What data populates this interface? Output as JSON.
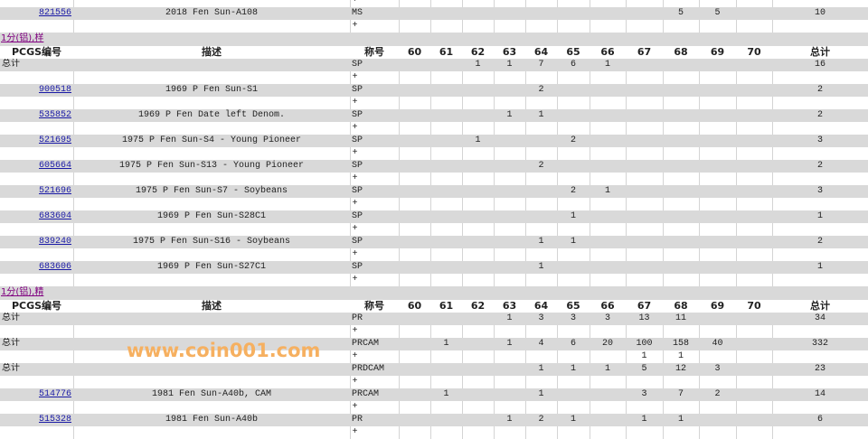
{
  "columns": [
    "PCGS编号",
    "描述",
    "称号",
    "60",
    "61",
    "62",
    "63",
    "64",
    "65",
    "66",
    "67",
    "68",
    "69",
    "70",
    "总计"
  ],
  "plus": "+",
  "total_label": "总计",
  "watermark": "www.coin001.com",
  "leading_rows": [
    {
      "type": "plus"
    },
    {
      "type": "item",
      "pcgs": "821556",
      "desc": "2018 Fen Sun-A108",
      "grade": "MS",
      "counts": {
        "68": "5",
        "69": "5"
      },
      "total": "10"
    },
    {
      "type": "plus"
    }
  ],
  "sections": [
    {
      "title": "1分(铝),样",
      "rows": [
        {
          "type": "total",
          "grade": "SP",
          "counts": {
            "62": "1",
            "63": "1",
            "64": "7",
            "65": "6",
            "66": "1"
          },
          "total": "16"
        },
        {
          "type": "plus"
        },
        {
          "type": "item",
          "pcgs": "900518",
          "desc": "1969 P Fen Sun-S1",
          "grade": "SP",
          "counts": {
            "64": "2"
          },
          "total": "2"
        },
        {
          "type": "plus"
        },
        {
          "type": "item",
          "pcgs": "535852",
          "desc": "1969 P Fen Date left Denom.",
          "grade": "SP",
          "counts": {
            "63": "1",
            "64": "1"
          },
          "total": "2"
        },
        {
          "type": "plus"
        },
        {
          "type": "item",
          "pcgs": "521695",
          "desc": "1975 P Fen Sun-S4 - Young Pioneer",
          "grade": "SP",
          "counts": {
            "62": "1",
            "65": "2"
          },
          "total": "3"
        },
        {
          "type": "plus"
        },
        {
          "type": "item",
          "pcgs": "605664",
          "desc": "1975 P Fen Sun-S13 - Young Pioneer",
          "grade": "SP",
          "counts": {
            "64": "2"
          },
          "total": "2"
        },
        {
          "type": "plus"
        },
        {
          "type": "item",
          "pcgs": "521696",
          "desc": "1975 P Fen Sun-S7 - Soybeans",
          "grade": "SP",
          "counts": {
            "65": "2",
            "66": "1"
          },
          "total": "3"
        },
        {
          "type": "plus"
        },
        {
          "type": "item",
          "pcgs": "683604",
          "desc": "1969 P Fen Sun-S28C1",
          "grade": "SP",
          "counts": {
            "65": "1"
          },
          "total": "1"
        },
        {
          "type": "plus"
        },
        {
          "type": "item",
          "pcgs": "839240",
          "desc": "1975 P Fen Sun-S16 - Soybeans",
          "grade": "SP",
          "counts": {
            "64": "1",
            "65": "1"
          },
          "total": "2"
        },
        {
          "type": "plus"
        },
        {
          "type": "item",
          "pcgs": "683606",
          "desc": "1969 P Fen Sun-S27C1",
          "grade": "SP",
          "counts": {
            "64": "1"
          },
          "total": "1"
        },
        {
          "type": "plus"
        }
      ]
    },
    {
      "title": "1分(铝),精",
      "rows": [
        {
          "type": "total",
          "grade": "PR",
          "counts": {
            "63": "1",
            "64": "3",
            "65": "3",
            "66": "3",
            "67": "13",
            "68": "11"
          },
          "total": "34"
        },
        {
          "type": "plus"
        },
        {
          "type": "total",
          "grade": "PRCAM",
          "counts": {
            "61": "1",
            "63": "1",
            "64": "4",
            "65": "6",
            "66": "20",
            "67": "100",
            "68": "158",
            "69": "40"
          },
          "total": "332"
        },
        {
          "type": "plus",
          "counts": {
            "67": "1",
            "68": "1"
          }
        },
        {
          "type": "total",
          "grade": "PRDCAM",
          "counts": {
            "64": "1",
            "65": "1",
            "66": "1",
            "67": "5",
            "68": "12",
            "69": "3"
          },
          "total": "23"
        },
        {
          "type": "plus"
        },
        {
          "type": "item",
          "pcgs": "514776",
          "desc": "1981 Fen Sun-A40b, CAM",
          "grade": "PRCAM",
          "counts": {
            "61": "1",
            "64": "1",
            "67": "3",
            "68": "7",
            "69": "2"
          },
          "total": "14"
        },
        {
          "type": "plus"
        },
        {
          "type": "item",
          "pcgs": "515328",
          "desc": "1981 Fen Sun-A40b",
          "grade": "PR",
          "counts": {
            "63": "1",
            "64": "2",
            "65": "1",
            "67": "1",
            "68": "1"
          },
          "total": "6"
        },
        {
          "type": "plus"
        }
      ]
    }
  ]
}
